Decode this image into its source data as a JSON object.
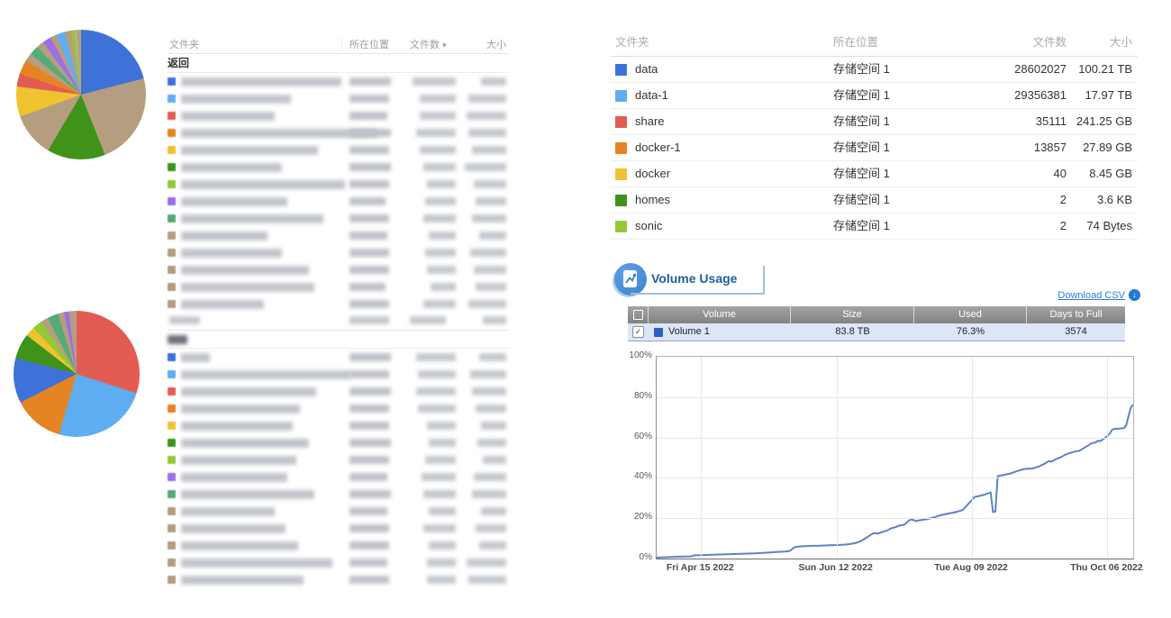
{
  "palette": {
    "blue": "#3f72d8",
    "lightblue": "#5fadf2",
    "red": "#e25c52",
    "orange": "#e58423",
    "yellow": "#eec32f",
    "green": "#3f9318",
    "lightgreen": "#94c837",
    "tan": "#b59e80",
    "tan2": "#c4ad8e",
    "teal": "#55ab76",
    "purple": "#9a6fe8",
    "volume_blue": "#2e5fc5",
    "line": "#5c83c6",
    "accent": "#1d5d9e",
    "link": "#2a7ed8"
  },
  "left": {
    "back_label": "返回",
    "table1": {
      "headers": {
        "folder": "文件夹",
        "location": "所在位置",
        "count": "文件数",
        "size": "大小"
      },
      "sort_icon": "▾",
      "rows": [
        {
          "color": "blue",
          "w": [
            178,
            46,
            48,
            28
          ]
        },
        {
          "color": "lightblue",
          "w": [
            122,
            44,
            40,
            42
          ]
        },
        {
          "color": "red",
          "w": [
            104,
            42,
            40,
            44
          ]
        },
        {
          "color": "orange",
          "w": [
            218,
            46,
            44,
            42
          ]
        },
        {
          "color": "yellow",
          "w": [
            152,
            44,
            40,
            38
          ]
        },
        {
          "color": "green",
          "w": [
            112,
            46,
            36,
            46
          ]
        },
        {
          "color": "lightgreen",
          "w": [
            182,
            44,
            32,
            36
          ]
        },
        {
          "color": "purple",
          "w": [
            118,
            40,
            34,
            34
          ]
        },
        {
          "color": "teal",
          "w": [
            158,
            44,
            36,
            38
          ]
        },
        {
          "color": "tan",
          "w": [
            96,
            42,
            30,
            30
          ]
        },
        {
          "color": "tan",
          "w": [
            112,
            44,
            34,
            40
          ]
        },
        {
          "color": "tan",
          "w": [
            142,
            44,
            32,
            36
          ]
        },
        {
          "color": "tan",
          "w": [
            148,
            40,
            28,
            34
          ]
        },
        {
          "color": "tan",
          "w": [
            92,
            44,
            36,
            42
          ]
        }
      ]
    },
    "table2": {
      "header_redacted": true,
      "rows": [
        {
          "color": "blue",
          "w": [
            32,
            46,
            44,
            30
          ]
        },
        {
          "color": "lightblue",
          "w": [
            188,
            44,
            42,
            40
          ]
        },
        {
          "color": "red",
          "w": [
            150,
            46,
            44,
            38
          ]
        },
        {
          "color": "orange",
          "w": [
            132,
            44,
            42,
            34
          ]
        },
        {
          "color": "yellow",
          "w": [
            124,
            44,
            32,
            28
          ]
        },
        {
          "color": "green",
          "w": [
            142,
            46,
            30,
            32
          ]
        },
        {
          "color": "lightgreen",
          "w": [
            128,
            44,
            34,
            26
          ]
        },
        {
          "color": "purple",
          "w": [
            118,
            42,
            38,
            36
          ]
        },
        {
          "color": "teal",
          "w": [
            148,
            46,
            36,
            38
          ]
        },
        {
          "color": "tan",
          "w": [
            104,
            42,
            30,
            28
          ]
        },
        {
          "color": "tan",
          "w": [
            116,
            44,
            36,
            34
          ]
        },
        {
          "color": "tan",
          "w": [
            130,
            44,
            30,
            30
          ]
        },
        {
          "color": "tan",
          "w": [
            168,
            42,
            32,
            44
          ]
        },
        {
          "color": "tan",
          "w": [
            136,
            44,
            32,
            42
          ]
        }
      ]
    }
  },
  "right": {
    "folders": {
      "headers": {
        "folder": "文件夹",
        "location": "所在位置",
        "count": "文件数",
        "size": "大小"
      },
      "rows": [
        {
          "color": "blue",
          "name": "data",
          "location": "存储空间 1",
          "count": "28602027",
          "size": "100.21 TB"
        },
        {
          "color": "lightblue",
          "name": "data-1",
          "location": "存储空间 1",
          "count": "29356381",
          "size": "17.97 TB"
        },
        {
          "color": "red",
          "name": "share",
          "location": "存储空间 1",
          "count": "35111",
          "size": "241.25 GB"
        },
        {
          "color": "orange",
          "name": "docker-1",
          "location": "存储空间 1",
          "count": "13857",
          "size": "27.89 GB"
        },
        {
          "color": "yellow",
          "name": "docker",
          "location": "存储空间 1",
          "count": "40",
          "size": "8.45 GB"
        },
        {
          "color": "green",
          "name": "homes",
          "location": "存储空间 1",
          "count": "2",
          "size": "3.6 KB"
        },
        {
          "color": "lightgreen",
          "name": "sonic",
          "location": "存储空间 1",
          "count": "2",
          "size": "74 Bytes"
        }
      ]
    },
    "volume_usage": {
      "title": "Volume Usage",
      "download_label": "Download CSV",
      "table": {
        "headers": [
          "Volume",
          "Size",
          "Used",
          "Days to Full"
        ],
        "row": {
          "name": "Volume 1",
          "size": "83.8 TB",
          "used": "76.3%",
          "days": "3574",
          "checked": "✓"
        }
      }
    }
  },
  "chart_data": [
    {
      "type": "pie",
      "title": "top-left folder size distribution (unlabeled)",
      "slices": [
        {
          "color": "blue",
          "pct": 21.0
        },
        {
          "color": "tan",
          "pct": 23.0
        },
        {
          "color": "green",
          "pct": 14.5
        },
        {
          "color": "tan",
          "pct": 11.0
        },
        {
          "color": "yellow",
          "pct": 7.5
        },
        {
          "color": "red",
          "pct": 3.2
        },
        {
          "color": "orange",
          "pct": 3.6
        },
        {
          "color": "tan",
          "pct": 2.0
        },
        {
          "color": "teal",
          "pct": 2.4
        },
        {
          "color": "tan",
          "pct": 1.8
        },
        {
          "color": "purple",
          "pct": 2.2
        },
        {
          "color": "tan",
          "pct": 1.5
        },
        {
          "color": "lightblue",
          "pct": 2.2
        },
        {
          "color": "tan",
          "pct": 1.6
        },
        {
          "color": "lightgreen",
          "pct": 1.0
        },
        {
          "color": "tan2",
          "pct": 0.5
        },
        {
          "color": "tan",
          "pct": 1.0
        }
      ]
    },
    {
      "type": "pie",
      "title": "bottom-left folder size distribution (unlabeled)",
      "slices": [
        {
          "color": "red",
          "pct": 30.0
        },
        {
          "color": "lightblue",
          "pct": 24.5
        },
        {
          "color": "orange",
          "pct": 13.0
        },
        {
          "color": "blue",
          "pct": 11.5
        },
        {
          "color": "green",
          "pct": 6.5
        },
        {
          "color": "yellow",
          "pct": 2.5
        },
        {
          "color": "lightgreen",
          "pct": 2.6
        },
        {
          "color": "tan",
          "pct": 1.8
        },
        {
          "color": "teal",
          "pct": 2.8
        },
        {
          "color": "tan",
          "pct": 1.6
        },
        {
          "color": "purple",
          "pct": 1.2
        },
        {
          "color": "tan",
          "pct": 2.0
        }
      ]
    },
    {
      "type": "line",
      "title": "Volume Usage",
      "series": [
        {
          "name": "Volume 1",
          "color": "#5c83c6"
        }
      ],
      "x_range_days": [
        0,
        204
      ],
      "x_ticks": [
        {
          "pos": 19,
          "label": "Fri Apr 15 2022"
        },
        {
          "pos": 77,
          "label": "Sun Jun 12 2022"
        },
        {
          "pos": 135,
          "label": "Tue Aug 09 2022"
        },
        {
          "pos": 193,
          "label": "Thu Oct 06 2022"
        }
      ],
      "ylim": [
        0,
        100
      ],
      "y_ticks": [
        "0%",
        "20%",
        "40%",
        "60%",
        "80%",
        "100%"
      ],
      "grid": true,
      "points": [
        [
          0,
          0.5
        ],
        [
          6,
          0.8
        ],
        [
          12,
          1.0
        ],
        [
          15,
          1.1
        ],
        [
          16,
          1.6
        ],
        [
          19,
          1.7
        ],
        [
          24,
          1.9
        ],
        [
          30,
          2.1
        ],
        [
          36,
          2.3
        ],
        [
          42,
          2.6
        ],
        [
          47,
          2.9
        ],
        [
          51,
          3.2
        ],
        [
          55,
          3.5
        ],
        [
          57,
          3.8
        ],
        [
          59,
          5.6
        ],
        [
          61,
          6.0
        ],
        [
          66,
          6.3
        ],
        [
          70,
          6.4
        ],
        [
          74,
          6.6
        ],
        [
          77,
          6.7
        ],
        [
          81,
          6.9
        ],
        [
          84,
          7.4
        ],
        [
          86,
          8.0
        ],
        [
          88,
          9.0
        ],
        [
          90,
          10.5
        ],
        [
          92,
          12.0
        ],
        [
          93,
          12.6
        ],
        [
          95,
          12.4
        ],
        [
          97,
          13.3
        ],
        [
          99,
          14.0
        ],
        [
          100,
          14.8
        ],
        [
          102,
          15.5
        ],
        [
          104,
          16.4
        ],
        [
          106,
          16.8
        ],
        [
          108,
          18.8
        ],
        [
          109,
          19.4
        ],
        [
          111,
          18.6
        ],
        [
          113,
          19.0
        ],
        [
          116,
          19.6
        ],
        [
          119,
          20.5
        ],
        [
          122,
          21.6
        ],
        [
          125,
          22.3
        ],
        [
          128,
          23.0
        ],
        [
          131,
          24.0
        ],
        [
          133,
          26.5
        ],
        [
          135,
          29.0
        ],
        [
          136,
          30.5
        ],
        [
          138,
          31.0
        ],
        [
          140,
          31.5
        ],
        [
          142,
          32.3
        ],
        [
          143,
          32.8
        ],
        [
          144,
          23.0
        ],
        [
          145,
          23.3
        ],
        [
          146,
          40.8
        ],
        [
          148,
          41.3
        ],
        [
          151,
          42.0
        ],
        [
          154,
          43.2
        ],
        [
          157,
          44.3
        ],
        [
          159,
          44.5
        ],
        [
          161,
          44.6
        ],
        [
          164,
          45.8
        ],
        [
          166,
          47.0
        ],
        [
          168,
          48.3
        ],
        [
          169,
          48.0
        ],
        [
          171,
          49.3
        ],
        [
          173,
          50.2
        ],
        [
          175,
          51.5
        ],
        [
          177,
          52.3
        ],
        [
          179,
          53.0
        ],
        [
          181,
          53.4
        ],
        [
          183,
          54.8
        ],
        [
          185,
          56.2
        ],
        [
          186,
          57.0
        ],
        [
          188,
          57.6
        ],
        [
          189,
          58.4
        ],
        [
          190,
          58.2
        ],
        [
          192,
          59.8
        ],
        [
          193,
          60.8
        ],
        [
          194,
          62.0
        ],
        [
          195,
          63.9
        ],
        [
          196,
          64.3
        ],
        [
          198,
          64.4
        ],
        [
          200,
          64.6
        ],
        [
          201,
          66.0
        ],
        [
          202,
          70.5
        ],
        [
          203,
          74.8
        ],
        [
          204,
          76.3
        ]
      ]
    }
  ]
}
